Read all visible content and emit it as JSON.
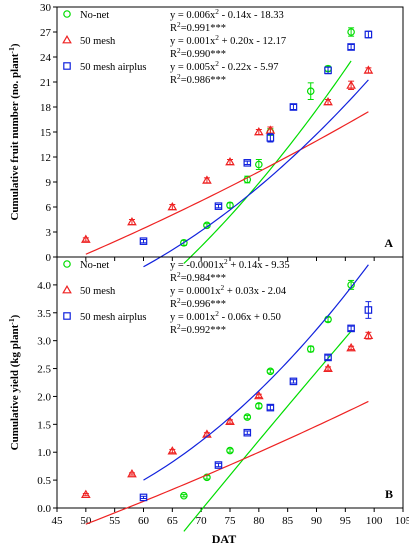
{
  "figure": {
    "xlabel": "DAT"
  },
  "chart_data": [
    {
      "type": "scatter",
      "panel_label": "A",
      "xlabel": "DAT",
      "ylabel": "Cumulative fruit number (no. plant⁻¹)",
      "xlim": [
        45,
        105
      ],
      "ylim": [
        0,
        30
      ],
      "xticks": [
        45,
        50,
        55,
        60,
        65,
        70,
        75,
        80,
        85,
        90,
        95,
        100,
        105
      ],
      "yticks": [
        0,
        3,
        6,
        9,
        12,
        15,
        18,
        21,
        24,
        27,
        30
      ],
      "grid": false,
      "legend_position": "top-left",
      "series": [
        {
          "name": "No-net",
          "color": "#00dd00",
          "marker": "circle",
          "equation": "y = 0.006x² - 0.14x - 18.33",
          "r2": "R²=0.991***",
          "fit": {
            "a": 0.006,
            "b": -0.14,
            "c": -18.33,
            "x0": 67,
            "x1": 96
          },
          "points": [
            {
              "x": 67,
              "y": 1.7,
              "err": 0.3
            },
            {
              "x": 71,
              "y": 3.8,
              "err": 0.2
            },
            {
              "x": 75,
              "y": 6.2,
              "err": 0.3
            },
            {
              "x": 78,
              "y": 9.3,
              "err": 0.4
            },
            {
              "x": 80,
              "y": 11.1,
              "err": 0.6
            },
            {
              "x": 82,
              "y": 15.0,
              "err": 0.4
            },
            {
              "x": 89,
              "y": 19.9,
              "err": 1.0
            },
            {
              "x": 92,
              "y": 22.6,
              "err": 0.3
            },
            {
              "x": 96,
              "y": 27.0,
              "err": 0.5
            }
          ]
        },
        {
          "name": "50 mesh",
          "color": "#ee2222",
          "marker": "triangle",
          "equation": "y = 0.001x² + 0.20x - 12.17",
          "r2": "R²=0.990***",
          "fit": {
            "a": 0.001,
            "b": 0.2,
            "c": -12.17,
            "x0": 50,
            "x1": 99
          },
          "points": [
            {
              "x": 50,
              "y": 2.1,
              "err": 0.2
            },
            {
              "x": 58,
              "y": 4.2,
              "err": 0.3
            },
            {
              "x": 65,
              "y": 6.0,
              "err": 0.3
            },
            {
              "x": 71,
              "y": 9.2,
              "err": 0.3
            },
            {
              "x": 75,
              "y": 11.4,
              "err": 0.3
            },
            {
              "x": 80,
              "y": 15.0,
              "err": 0.3
            },
            {
              "x": 82,
              "y": 15.2,
              "err": 0.4
            },
            {
              "x": 92,
              "y": 18.6,
              "err": 0.3
            },
            {
              "x": 96,
              "y": 20.6,
              "err": 0.5
            },
            {
              "x": 99,
              "y": 22.4,
              "err": 0.3
            }
          ]
        },
        {
          "name": "50 mesh airplus",
          "color": "#1122dd",
          "marker": "square",
          "equation": "y = 0.005x² - 0.22x - 5.97",
          "r2": "R²=0.986***",
          "fit": {
            "a": 0.005,
            "b": -0.22,
            "c": -5.97,
            "x0": 60,
            "x1": 99
          },
          "points": [
            {
              "x": 60,
              "y": 1.9,
              "err": 0.2
            },
            {
              "x": 73,
              "y": 6.1,
              "err": 0.2
            },
            {
              "x": 78,
              "y": 11.3,
              "err": 0.2
            },
            {
              "x": 82,
              "y": 14.3,
              "err": 0.5
            },
            {
              "x": 86,
              "y": 18.0,
              "err": 0.3
            },
            {
              "x": 92,
              "y": 22.4,
              "err": 0.4
            },
            {
              "x": 96,
              "y": 25.2,
              "err": 0.3
            },
            {
              "x": 99,
              "y": 26.7,
              "err": 0.4
            }
          ]
        }
      ]
    },
    {
      "type": "scatter",
      "panel_label": "B",
      "xlabel": "DAT",
      "ylabel": "Cumulative yield (kg plant⁻¹)",
      "xlim": [
        45,
        105
      ],
      "ylim": [
        0,
        4.5
      ],
      "xticks": [
        45,
        50,
        55,
        60,
        65,
        70,
        75,
        80,
        85,
        90,
        95,
        100,
        105
      ],
      "yticks": [
        0.0,
        0.5,
        1.0,
        1.5,
        2.0,
        2.5,
        3.0,
        3.5,
        4.0
      ],
      "grid": false,
      "legend_position": "top-left",
      "series": [
        {
          "name": "No-net",
          "color": "#00dd00",
          "marker": "circle",
          "equation": "y = -0.0001x² + 0.14x - 9.35",
          "r2": "R²=0.984***",
          "fit": {
            "a": -0.0001,
            "b": 0.14,
            "c": -9.35,
            "x0": 67,
            "x1": 96
          },
          "points": [
            {
              "x": 67,
              "y": 0.22,
              "err": 0.02
            },
            {
              "x": 71,
              "y": 0.55,
              "err": 0.03
            },
            {
              "x": 75,
              "y": 1.03,
              "err": 0.03
            },
            {
              "x": 78,
              "y": 1.63,
              "err": 0.03
            },
            {
              "x": 80,
              "y": 1.83,
              "err": 0.04
            },
            {
              "x": 82,
              "y": 2.45,
              "err": 0.03
            },
            {
              "x": 89,
              "y": 2.85,
              "err": 0.05
            },
            {
              "x": 92,
              "y": 3.38,
              "err": 0.04
            },
            {
              "x": 96,
              "y": 4.0,
              "err": 0.08
            }
          ]
        },
        {
          "name": "50 mesh",
          "color": "#ee2222",
          "marker": "triangle",
          "equation": "y = 0.0001x² + 0.03x - 2.04",
          "r2": "R²=0.996***",
          "fit": {
            "a": 0.0001,
            "b": 0.03,
            "c": -2.04,
            "x0": 50,
            "x1": 99
          },
          "points": [
            {
              "x": 50,
              "y": 0.24,
              "err": 0.02
            },
            {
              "x": 58,
              "y": 0.61,
              "err": 0.02
            },
            {
              "x": 65,
              "y": 1.02,
              "err": 0.03
            },
            {
              "x": 71,
              "y": 1.32,
              "err": 0.03
            },
            {
              "x": 75,
              "y": 1.55,
              "err": 0.03
            },
            {
              "x": 80,
              "y": 2.01,
              "err": 0.03
            },
            {
              "x": 92,
              "y": 2.5,
              "err": 0.03
            },
            {
              "x": 96,
              "y": 2.87,
              "err": 0.03
            },
            {
              "x": 99,
              "y": 3.09,
              "err": 0.06
            }
          ]
        },
        {
          "name": "50 mesh airplus",
          "color": "#1122dd",
          "marker": "square",
          "equation": "y = 0.001x² - 0.06x + 0.50",
          "r2": "R²=0.992***",
          "fit": {
            "a": 0.001,
            "b": -0.06,
            "c": 0.5,
            "x0": 60,
            "x1": 99
          },
          "points": [
            {
              "x": 60,
              "y": 0.19,
              "err": 0.02
            },
            {
              "x": 73,
              "y": 0.77,
              "err": 0.03
            },
            {
              "x": 78,
              "y": 1.35,
              "err": 0.03
            },
            {
              "x": 82,
              "y": 1.8,
              "err": 0.04
            },
            {
              "x": 86,
              "y": 2.27,
              "err": 0.03
            },
            {
              "x": 92,
              "y": 2.7,
              "err": 0.04
            },
            {
              "x": 96,
              "y": 3.22,
              "err": 0.04
            },
            {
              "x": 99,
              "y": 3.55,
              "err": 0.15
            }
          ]
        }
      ]
    }
  ]
}
